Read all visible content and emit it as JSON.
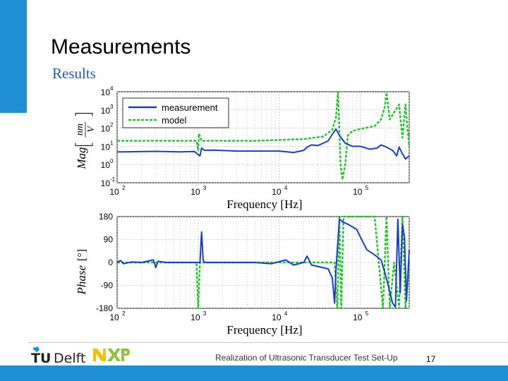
{
  "slide": {
    "title": "Measurements",
    "subtitle": "Results",
    "footer": "Realization of Ultrasonic Transducer Test Set-Up",
    "page_number": "17",
    "logo_tudelft": "TUDelft",
    "logo_nxp": "NXP"
  },
  "colors": {
    "accent": "#1f8fd6",
    "measurement": "#1a3ec7",
    "model": "#22c32b"
  },
  "chart_data": [
    {
      "type": "line",
      "id": "magnitude",
      "xlabel": "Frequency [Hz]",
      "ylabel": "Mag [nm/V]",
      "ylabel_main": "Mag",
      "ylabel_num": "nm",
      "ylabel_den": "V",
      "x_scale": "log",
      "y_scale": "log",
      "xlim": [
        100,
        400000
      ],
      "ylim": [
        0.1,
        10000
      ],
      "xticks": [
        100,
        1000,
        10000,
        100000
      ],
      "yticks": [
        0.1,
        1,
        10,
        100,
        1000,
        10000
      ],
      "legend": {
        "position": "top-left",
        "entries": [
          "measurement",
          "model"
        ]
      },
      "grid": true,
      "series": [
        {
          "name": "measurement",
          "style": "solid",
          "color": "#1a3ec7",
          "points": [
            [
              100,
              5
            ],
            [
              120,
              5
            ],
            [
              300,
              5.3
            ],
            [
              600,
              5
            ],
            [
              900,
              5.2
            ],
            [
              1000,
              3.5
            ],
            [
              1050,
              3
            ],
            [
              1100,
              8
            ],
            [
              1200,
              6
            ],
            [
              1500,
              6.2
            ],
            [
              3000,
              5.5
            ],
            [
              10000,
              5.5
            ],
            [
              15000,
              4.6
            ],
            [
              20000,
              6
            ],
            [
              22000,
              9
            ],
            [
              25000,
              12
            ],
            [
              30000,
              11
            ],
            [
              40000,
              20
            ],
            [
              45000,
              45
            ],
            [
              50000,
              90
            ],
            [
              55000,
              40
            ],
            [
              65000,
              15
            ],
            [
              80000,
              10
            ],
            [
              100000,
              10
            ],
            [
              130000,
              7
            ],
            [
              160000,
              8
            ],
            [
              180000,
              12
            ],
            [
              200000,
              10
            ],
            [
              250000,
              6
            ],
            [
              280000,
              3
            ],
            [
              300000,
              9
            ],
            [
              330000,
              4
            ],
            [
              360000,
              2
            ],
            [
              400000,
              3
            ]
          ]
        },
        {
          "name": "model",
          "style": "dashed",
          "color": "#22c32b",
          "points": [
            [
              100,
              20
            ],
            [
              800,
              20
            ],
            [
              950,
              20
            ],
            [
              1000,
              6
            ],
            [
              1020,
              50
            ],
            [
              1100,
              20
            ],
            [
              5000,
              20
            ],
            [
              20000,
              25
            ],
            [
              35000,
              35
            ],
            [
              45000,
              80
            ],
            [
              50000,
              400
            ],
            [
              53000,
              9000
            ],
            [
              57000,
              1
            ],
            [
              60000,
              0.15
            ],
            [
              65000,
              1
            ],
            [
              70000,
              40
            ],
            [
              80000,
              70
            ],
            [
              100000,
              90
            ],
            [
              150000,
              130
            ],
            [
              180000,
              300
            ],
            [
              200000,
              1500
            ],
            [
              210000,
              9000
            ],
            [
              230000,
              300
            ],
            [
              300000,
              2000
            ],
            [
              330000,
              30
            ],
            [
              360000,
              2000
            ],
            [
              380000,
              100
            ],
            [
              400000,
              10
            ]
          ]
        }
      ]
    },
    {
      "type": "line",
      "id": "phase",
      "xlabel": "Frequency [Hz]",
      "ylabel": "Phase [°]",
      "ylabel_main": "Phase",
      "ylabel_unit": "[°]",
      "x_scale": "log",
      "xlim": [
        100,
        400000
      ],
      "ylim": [
        -180,
        180
      ],
      "xticks": [
        100,
        1000,
        10000,
        100000
      ],
      "yticks": [
        -180,
        -90,
        0,
        90,
        180
      ],
      "grid": true,
      "series": [
        {
          "name": "measurement",
          "style": "solid",
          "color": "#1a3ec7",
          "points": [
            [
              100,
              0
            ],
            [
              110,
              8
            ],
            [
              120,
              -5
            ],
            [
              150,
              2
            ],
            [
              200,
              0
            ],
            [
              280,
              10
            ],
            [
              300,
              -20
            ],
            [
              320,
              5
            ],
            [
              400,
              0
            ],
            [
              800,
              0
            ],
            [
              1050,
              0
            ],
            [
              1100,
              120
            ],
            [
              1150,
              10
            ],
            [
              1200,
              0
            ],
            [
              5000,
              0
            ],
            [
              8000,
              -5
            ],
            [
              12000,
              10
            ],
            [
              15000,
              -10
            ],
            [
              20000,
              0
            ],
            [
              22000,
              25
            ],
            [
              25000,
              -10
            ],
            [
              40000,
              -25
            ],
            [
              45000,
              -60
            ],
            [
              48000,
              -160
            ],
            [
              50000,
              -30
            ],
            [
              55000,
              170
            ],
            [
              60000,
              160
            ],
            [
              70000,
              150
            ],
            [
              90000,
              130
            ],
            [
              100000,
              100
            ],
            [
              120000,
              50
            ],
            [
              150000,
              30
            ],
            [
              180000,
              10
            ],
            [
              200000,
              -40
            ],
            [
              220000,
              -90
            ],
            [
              250000,
              -160
            ],
            [
              270000,
              -175
            ],
            [
              290000,
              170
            ],
            [
              310000,
              -120
            ],
            [
              330000,
              150
            ],
            [
              350000,
              100
            ],
            [
              370000,
              -150
            ],
            [
              400000,
              50
            ]
          ]
        },
        {
          "name": "model",
          "style": "dashed",
          "color": "#22c32b",
          "points": [
            [
              100,
              0
            ],
            [
              950,
              0
            ],
            [
              1000,
              -180
            ],
            [
              1050,
              0
            ],
            [
              40000,
              0
            ],
            [
              48000,
              0
            ],
            [
              52000,
              -180
            ],
            [
              55000,
              180
            ],
            [
              58000,
              -180
            ],
            [
              62000,
              180
            ],
            [
              70000,
              180
            ],
            [
              150000,
              180
            ],
            [
              190000,
              -180
            ],
            [
              210000,
              180
            ],
            [
              230000,
              -180
            ],
            [
              260000,
              0
            ],
            [
              300000,
              -180
            ],
            [
              330000,
              180
            ],
            [
              360000,
              -180
            ],
            [
              400000,
              0
            ]
          ]
        }
      ]
    }
  ]
}
